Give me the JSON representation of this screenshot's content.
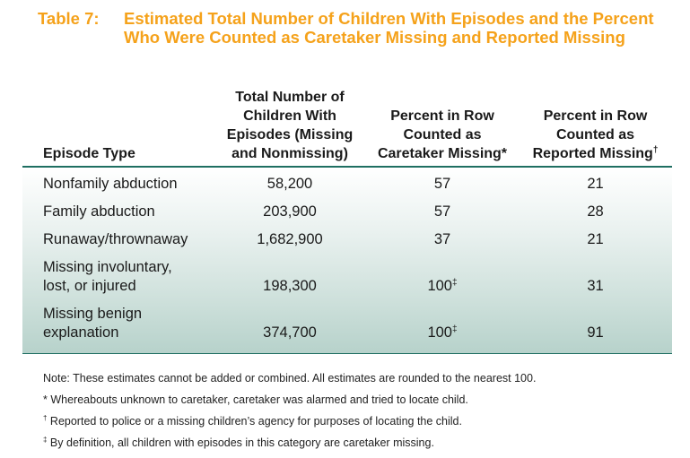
{
  "title": {
    "number": "Table 7:",
    "text": "Estimated Total Number of Children With Episodes and the Percent Who Were Counted as Caretaker Missing and Reported Missing"
  },
  "headers": {
    "col0": "Episode Type",
    "col1_lines": [
      "Total Number of",
      "Children With",
      "Episodes (Missing",
      "and Nonmissing)"
    ],
    "col2_lines": [
      "Percent in Row",
      "Counted as",
      "Caretaker Missing*"
    ],
    "col3_lines": [
      "Percent in Row",
      "Counted as",
      "Reported Missing"
    ],
    "col3_mark": "†"
  },
  "rows": [
    {
      "label": [
        "Nonfamily abduction"
      ],
      "total": "58,200",
      "caretaker": "57",
      "caretaker_mark": "",
      "reported": "21"
    },
    {
      "label": [
        "Family abduction"
      ],
      "total": "203,900",
      "caretaker": "57",
      "caretaker_mark": "",
      "reported": "28"
    },
    {
      "label": [
        "Runaway/thrownaway"
      ],
      "total": "1,682,900",
      "caretaker": "37",
      "caretaker_mark": "",
      "reported": "21"
    },
    {
      "label": [
        "Missing involuntary,",
        "lost, or injured"
      ],
      "total": "198,300",
      "caretaker": "100",
      "caretaker_mark": "‡",
      "reported": "31"
    },
    {
      "label": [
        "Missing benign",
        "explanation"
      ],
      "total": "374,700",
      "caretaker": "100",
      "caretaker_mark": "‡",
      "reported": "91"
    }
  ],
  "notes": [
    {
      "mark": "",
      "text": "Note: These estimates cannot be added or combined. All estimates are rounded to the nearest 100."
    },
    {
      "mark": "*",
      "text": " Whereabouts unknown to caretaker, caretaker was alarmed and tried to locate child."
    },
    {
      "mark": "†",
      "text": " Reported to police or a missing children’s agency for purposes of locating the child."
    },
    {
      "mark": "‡",
      "text": " By definition, all children with episodes in this category are caretaker missing."
    }
  ]
}
